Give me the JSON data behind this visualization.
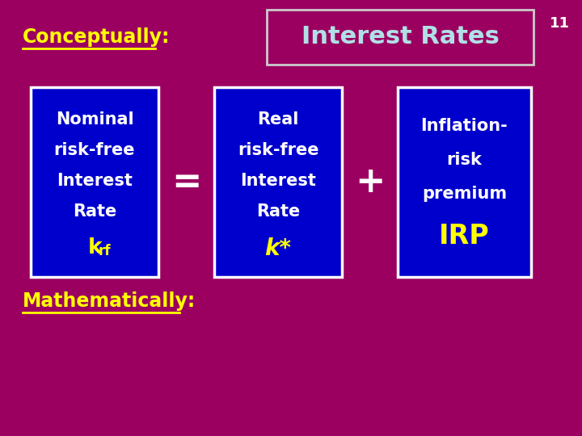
{
  "bg_color": "#9B0060",
  "title_text": "Interest Rates",
  "title_color": "#B0E0E6",
  "title_box_edge": "#CCCCCC",
  "slide_number": "11",
  "slide_number_color": "#FFFFFF",
  "conceptually_text": "Conceptually:",
  "conceptually_color": "#FFFF00",
  "mathematically_text": "Mathematically:",
  "mathematically_color": "#FFFF00",
  "box_bg": "#0000CC",
  "box_edge": "#FFFFFF",
  "box1_lines": [
    "Nominal",
    "risk-free",
    "Interest",
    "Rate"
  ],
  "box1_sub_k": "k",
  "box1_sub_rf": "rf",
  "box1_sub_color": "#FFFF00",
  "box2_lines": [
    "Real",
    "risk-free",
    "Interest",
    "Rate"
  ],
  "box2_sub": "k*",
  "box2_sub_color": "#FFFF00",
  "box3_lines": [
    "Inflation-",
    "risk",
    "premium"
  ],
  "box3_sub": "IRP",
  "box3_sub_color": "#FFFF00",
  "equals_text": "=",
  "plus_text": "+",
  "operator_color": "#FFFFFF",
  "white_text": "#FFFFFF"
}
